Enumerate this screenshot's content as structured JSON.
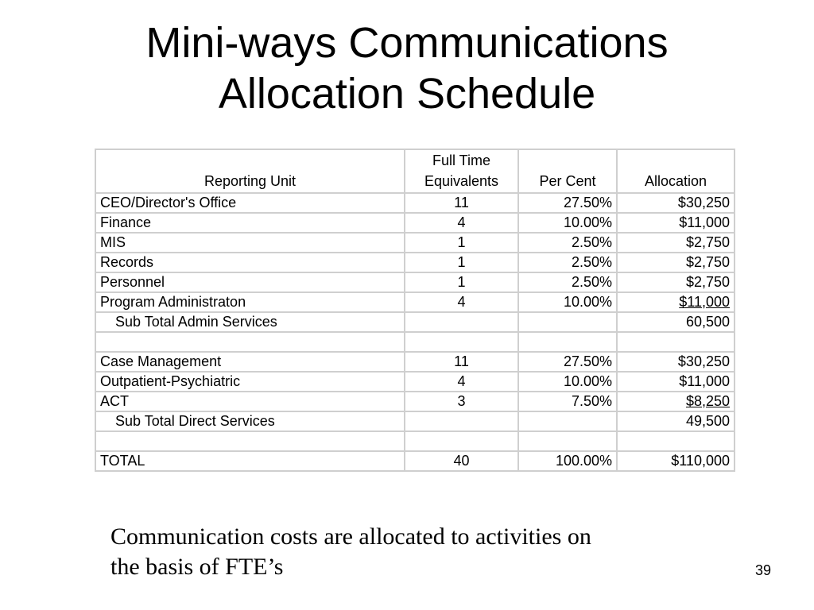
{
  "slide": {
    "title_line1": "Mini-ways Communications",
    "title_line2": "Allocation Schedule",
    "caption_line1": "Communication costs are allocated to activities on",
    "caption_line2": "the basis of FTE’s",
    "page_number": "39"
  },
  "table": {
    "headers": {
      "unit": "Reporting Unit",
      "fte_line1": "Full Time",
      "fte_line2": "Equivalents",
      "percent": "Per Cent",
      "allocation": "Allocation"
    },
    "rows": [
      {
        "unit": "CEO/Director's Office",
        "fte": "11",
        "percent": "27.50%",
        "allocation": "$30,250"
      },
      {
        "unit": "Finance",
        "fte": "4",
        "percent": "10.00%",
        "allocation": "$11,000"
      },
      {
        "unit": "MIS",
        "fte": "1",
        "percent": "2.50%",
        "allocation": "$2,750"
      },
      {
        "unit": "Records",
        "fte": "1",
        "percent": "2.50%",
        "allocation": "$2,750"
      },
      {
        "unit": "Personnel",
        "fte": "1",
        "percent": "2.50%",
        "allocation": "$2,750"
      },
      {
        "unit": "Program Administraton",
        "fte": "4",
        "percent": "10.00%",
        "allocation": "$11,000"
      },
      {
        "unit": "Sub Total Admin Services",
        "fte": "",
        "percent": "",
        "allocation": "60,500"
      },
      {
        "unit": "",
        "fte": "",
        "percent": "",
        "allocation": ""
      },
      {
        "unit": "Case Management",
        "fte": "11",
        "percent": "27.50%",
        "allocation": "$30,250"
      },
      {
        "unit": "Outpatient-Psychiatric",
        "fte": "4",
        "percent": "10.00%",
        "allocation": "$11,000"
      },
      {
        "unit": "ACT",
        "fte": "3",
        "percent": "7.50%",
        "allocation": "$8,250"
      },
      {
        "unit": "Sub Total Direct Services",
        "fte": "",
        "percent": "",
        "allocation": "49,500"
      },
      {
        "unit": "",
        "fte": "",
        "percent": "",
        "allocation": ""
      },
      {
        "unit": "TOTAL",
        "fte": "40",
        "percent": "100.00%",
        "allocation": "$110,000"
      }
    ]
  }
}
